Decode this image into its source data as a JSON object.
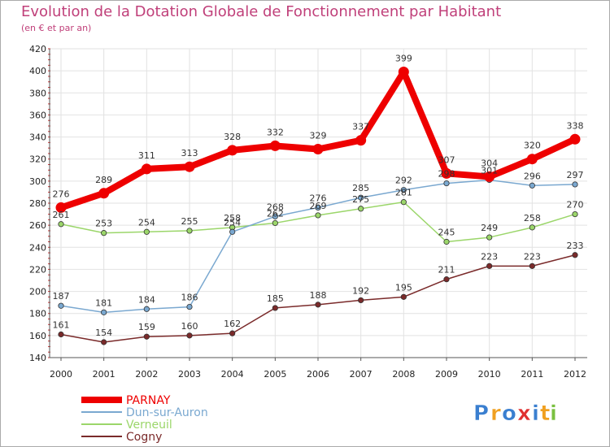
{
  "chart_data": {
    "type": "line",
    "title": "Evolution de la Dotation Globale de Fonctionnement par Habitant",
    "subtitle": "(en € et par an)",
    "xlabel": "",
    "ylabel": "",
    "categories": [
      "2000",
      "2001",
      "2002",
      "2003",
      "2004",
      "2005",
      "2006",
      "2007",
      "2008",
      "2009",
      "2010",
      "2011",
      "2012"
    ],
    "ylim": [
      140,
      420
    ],
    "yticks": [
      140,
      160,
      180,
      200,
      220,
      240,
      260,
      280,
      300,
      320,
      340,
      360,
      380,
      400,
      420
    ],
    "grid": true,
    "legend_position": "bottom-left",
    "series": [
      {
        "name": "Cogny",
        "color": "#7a2a2a",
        "values": [
          161,
          154,
          159,
          160,
          162,
          185,
          188,
          192,
          195,
          211,
          223,
          223,
          233
        ],
        "labels": [
          "161",
          "154",
          "159",
          "160",
          "162",
          "185",
          "188",
          "192",
          "195",
          "211",
          "223",
          "223",
          "233"
        ]
      },
      {
        "name": "Verneuil",
        "color": "#9bd66a",
        "values": [
          261,
          253,
          254,
          255,
          258,
          262,
          269,
          275,
          281,
          245,
          249,
          258,
          270
        ],
        "labels": [
          "261",
          "253",
          "254",
          "255",
          "258",
          "262",
          "269",
          "275",
          "281",
          "245",
          "249",
          "258",
          "270"
        ]
      },
      {
        "name": "Dun-sur-Auron",
        "color": "#7aa8d0",
        "values": [
          187,
          181,
          184,
          186,
          254,
          268,
          276,
          285,
          292,
          298,
          301,
          296,
          297
        ],
        "labels": [
          "187",
          "181",
          "184",
          "186",
          "254",
          "268",
          "276",
          "285",
          "292",
          "298",
          "301",
          "296",
          "297"
        ]
      },
      {
        "name": "PARNAY",
        "color": "#ee0000",
        "values": [
          276,
          289,
          311,
          313,
          328,
          332,
          329,
          337,
          399,
          307,
          304,
          320,
          338
        ],
        "labels": [
          "276",
          "289",
          "311",
          "313",
          "328",
          "332",
          "329",
          "337",
          "399",
          "307",
          "304",
          "320",
          "338"
        ]
      }
    ],
    "legend_order": [
      "PARNAY",
      "Dun-sur-Auron",
      "Verneuil",
      "Cogny"
    ]
  },
  "logo": {
    "text": "Proxiti",
    "letters": [
      "P",
      "r",
      "o",
      "x",
      "i",
      "t",
      "i"
    ],
    "colors": [
      "#3a7fd0",
      "#f0a020",
      "#3a7fd0",
      "#e03030",
      "#3a7fd0",
      "#f0a020",
      "#7ac040"
    ]
  }
}
